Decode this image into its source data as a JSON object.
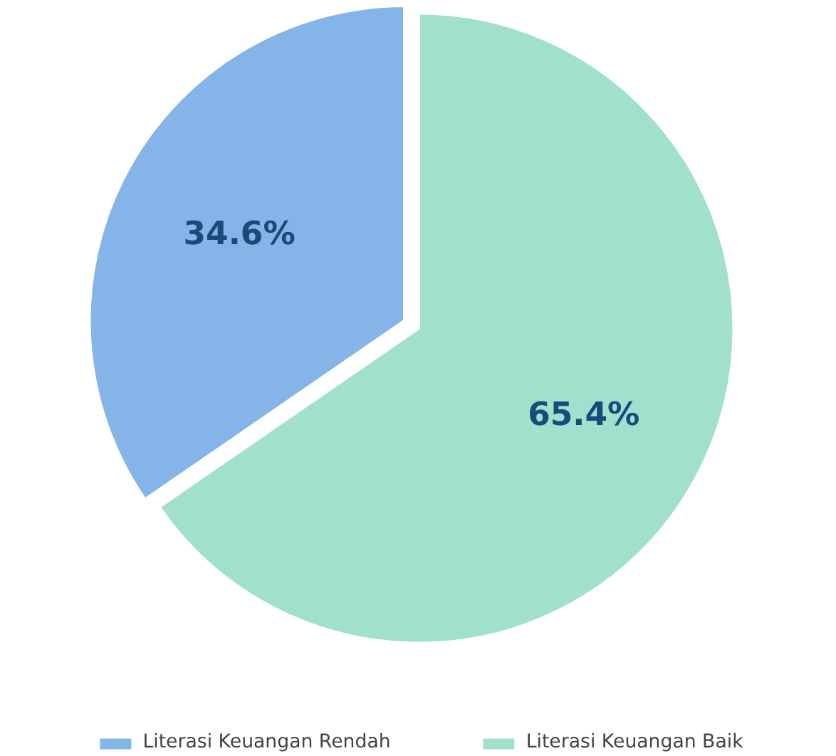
{
  "chart_data": {
    "type": "pie",
    "categories": [
      "Literasi Keuangan Rendah",
      "Literasi Keuangan Baik"
    ],
    "values": [
      34.6,
      65.4
    ],
    "colors": [
      "#85b5e8",
      "#a0e0cc"
    ],
    "value_labels": [
      "34.6%",
      "65.4%"
    ],
    "legend": "bottom"
  }
}
